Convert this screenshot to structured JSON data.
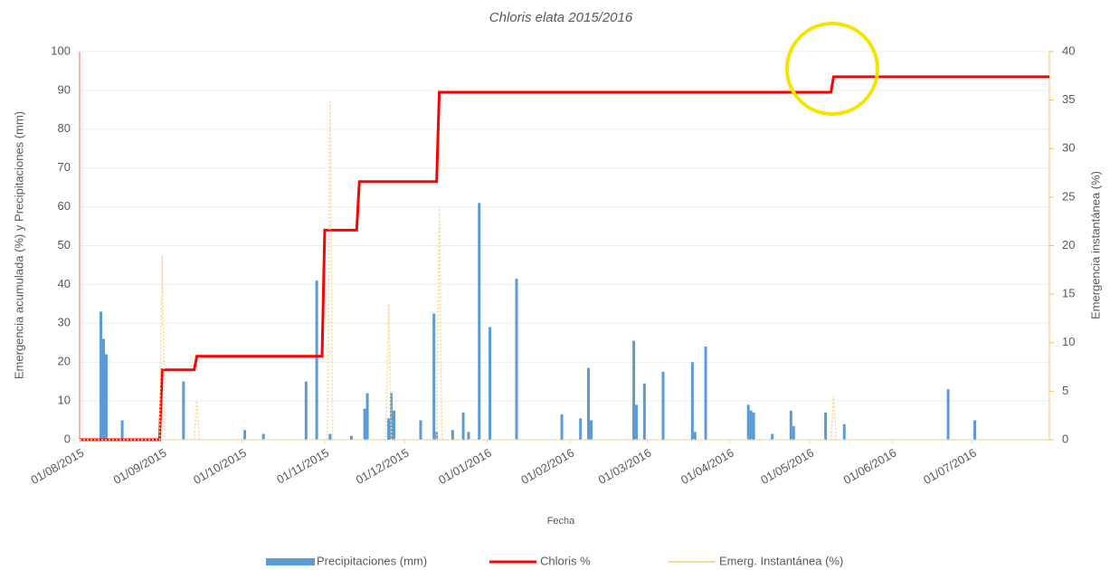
{
  "chart_data": {
    "type": "combo",
    "title": "Chloris elata 2015/2016",
    "xlabel": "Fecha",
    "ylabel": "Emergencia acumulada (%) y Precipitaciones (mm)",
    "y2label": "Emergencia instantánea (%)",
    "xlim": [
      "2015-08-01",
      "2016-07-30"
    ],
    "xticks": [
      {
        "value": "2015-08-01",
        "label": "01/08/2015"
      },
      {
        "value": "2015-09-01",
        "label": "01/09/2015"
      },
      {
        "value": "2015-10-01",
        "label": "01/10/2015"
      },
      {
        "value": "2015-11-01",
        "label": "01/11/2015"
      },
      {
        "value": "2015-12-01",
        "label": "01/12/2015"
      },
      {
        "value": "2016-01-01",
        "label": "01/01/2016"
      },
      {
        "value": "2016-02-01",
        "label": "01/02/2016"
      },
      {
        "value": "2016-03-01",
        "label": "01/03/2016"
      },
      {
        "value": "2016-04-01",
        "label": "01/04/2016"
      },
      {
        "value": "2016-05-01",
        "label": "01/05/2016"
      },
      {
        "value": "2016-06-01",
        "label": "01/06/2016"
      },
      {
        "value": "2016-07-01",
        "label": "01/07/2016"
      }
    ],
    "ylim": [
      0,
      100
    ],
    "yticks": [
      0,
      10,
      20,
      30,
      40,
      50,
      60,
      70,
      80,
      90,
      100
    ],
    "y2lim": [
      0,
      40
    ],
    "y2ticks": [
      0,
      5,
      10,
      15,
      20,
      25,
      30,
      35,
      40
    ],
    "grid": true,
    "legend": "bottom",
    "series": [
      {
        "name": "Precipitaciones (mm)",
        "type": "bar",
        "color": "#5b9bd5",
        "x": [
          "2015-08-09",
          "2015-08-10",
          "2015-08-11",
          "2015-08-17",
          "2015-09-09",
          "2015-10-02",
          "2015-10-09",
          "2015-10-25",
          "2015-10-29",
          "2015-11-03",
          "2015-11-11",
          "2015-11-16",
          "2015-11-17",
          "2015-11-25",
          "2015-11-26",
          "2015-11-27",
          "2015-12-07",
          "2015-12-12",
          "2015-12-13",
          "2015-12-19",
          "2015-12-23",
          "2015-12-25",
          "2015-12-29",
          "2016-01-02",
          "2016-01-12",
          "2016-01-29",
          "2016-02-05",
          "2016-02-08",
          "2016-02-09",
          "2016-02-25",
          "2016-02-26",
          "2016-02-29",
          "2016-03-07",
          "2016-03-18",
          "2016-03-19",
          "2016-03-23",
          "2016-04-08",
          "2016-04-09",
          "2016-04-10",
          "2016-04-17",
          "2016-04-24",
          "2016-04-25",
          "2016-05-07",
          "2016-05-14",
          "2016-06-22",
          "2016-07-02"
        ],
        "values": [
          33,
          26,
          22,
          5,
          15,
          2.5,
          1.5,
          15,
          41,
          1.5,
          1,
          8,
          12,
          5.5,
          12,
          7.5,
          5,
          32.5,
          2,
          2.5,
          7,
          2,
          61,
          29,
          41.5,
          6.5,
          5.5,
          18.5,
          5,
          25.5,
          9,
          14.5,
          17.5,
          20,
          2,
          24,
          9,
          7.5,
          7,
          1.5,
          7.5,
          3.5,
          7,
          4,
          13,
          5
        ]
      },
      {
        "name": "Chloris %",
        "type": "line",
        "color": "#ff0000",
        "x": [
          "2015-08-01",
          "2015-08-31",
          "2015-09-01",
          "2015-09-13",
          "2015-09-14",
          "2015-10-31",
          "2015-11-01",
          "2015-11-13",
          "2015-11-14",
          "2015-12-13",
          "2015-12-14",
          "2016-05-09",
          "2016-05-10",
          "2016-07-30"
        ],
        "values": [
          0,
          0,
          18,
          18,
          21.5,
          21.5,
          54,
          54,
          66.5,
          66.5,
          89.5,
          89.5,
          93.5,
          93.5
        ]
      },
      {
        "name": "Emerg. Instantánea (%)",
        "type": "line",
        "axis": "y2",
        "color": "#f7d98f",
        "x": [
          "2015-08-01",
          "2015-08-31",
          "2015-09-01",
          "2015-09-02",
          "2015-09-13",
          "2015-09-14",
          "2015-09-15",
          "2015-11-02",
          "2015-11-03",
          "2015-11-04",
          "2015-11-24",
          "2015-11-25",
          "2015-11-26",
          "2015-12-13",
          "2015-12-14",
          "2015-12-15",
          "2016-05-09",
          "2016-05-10",
          "2016-05-11",
          "2016-07-30"
        ],
        "values": [
          0,
          0,
          19,
          0,
          0,
          4,
          0,
          0,
          35,
          0,
          0,
          14,
          0,
          0,
          24,
          0,
          0,
          4.5,
          0,
          0
        ]
      }
    ]
  }
}
